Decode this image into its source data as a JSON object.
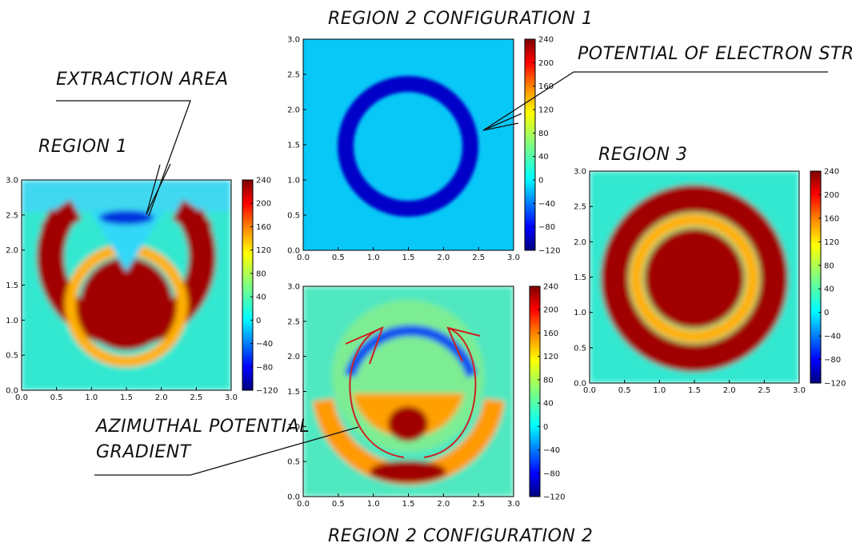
{
  "annotations": {
    "region1": "REGION 1",
    "region2_config1": "REGION 2 CONFIGURATION 1",
    "region2_config2": "REGION 2 CONFIGURATION 2",
    "region3": "REGION 3",
    "extraction_area": "EXTRACTION AREA",
    "potential_string": "POTENTIAL OF ELECTRON STRING",
    "azimuthal_line1": "AZIMUTHAL POTENTIAL",
    "azimuthal_line2": "GRADIENT"
  },
  "colors": {
    "jet": [
      "#00007f",
      "#0000ff",
      "#007fff",
      "#00ffff",
      "#7fff7f",
      "#ffff00",
      "#ff7f00",
      "#ff0000",
      "#7f0000"
    ],
    "arrow": "#cc2222"
  },
  "chart_data": [
    {
      "type": "heatmap",
      "title": "REGION 1",
      "xlim": [
        0,
        3
      ],
      "ylim": [
        0,
        3
      ],
      "xticks": [
        "0.0",
        "0.5",
        "1.0",
        "1.5",
        "2.0",
        "2.5",
        "3.0"
      ],
      "yticks": [
        "0.0",
        "0.5",
        "1.0",
        "1.5",
        "2.0",
        "2.5",
        "3.0"
      ],
      "colorbar": {
        "range": [
          -120,
          240
        ],
        "ticks": [
          "240",
          "200",
          "160",
          "120",
          "80",
          "40",
          "0",
          "−40",
          "−80",
          "−120"
        ]
      },
      "background": 40,
      "features": [
        {
          "kind": "ring",
          "cx": 1.5,
          "cy": 1.2,
          "r": 1.1,
          "width": 0.4,
          "value": 240,
          "gap_deg": [
            60,
            120
          ]
        },
        {
          "kind": "ring",
          "cx": 1.5,
          "cy": 1.2,
          "r": 0.75,
          "width": 0.14,
          "value": 160,
          "gap_deg": [
            58,
            122
          ]
        },
        {
          "kind": "disk",
          "cx": 1.5,
          "cy": 1.2,
          "r": 0.62,
          "value": 240
        },
        {
          "kind": "wedge",
          "x": [
            1.0,
            2.0,
            1.5
          ],
          "y": [
            2.55,
            2.55,
            1.7
          ],
          "value": 20
        },
        {
          "kind": "blob",
          "cx": 1.5,
          "cy": 2.45,
          "rx": 0.35,
          "ry": 0.1,
          "value": -60
        }
      ]
    },
    {
      "type": "heatmap",
      "title": "REGION 2 CONFIGURATION 1",
      "xlim": [
        0,
        3
      ],
      "ylim": [
        0,
        3
      ],
      "xticks": [
        "0.0",
        "0.5",
        "1.0",
        "1.5",
        "2.0",
        "2.5",
        "3.0"
      ],
      "yticks": [
        "0.0",
        "0.5",
        "1.0",
        "1.5",
        "2.0",
        "2.5",
        "3.0"
      ],
      "colorbar": {
        "range": [
          -120,
          240
        ],
        "ticks": [
          "240",
          "200",
          "160",
          "120",
          "80",
          "40",
          "0",
          "−40",
          "−80",
          "−120"
        ]
      },
      "background": 0,
      "features": [
        {
          "kind": "ring",
          "cx": 1.5,
          "cy": 1.6,
          "r": 0.82,
          "width": 0.16,
          "value": -110
        }
      ]
    },
    {
      "type": "heatmap",
      "title": "REGION 2 CONFIGURATION 2",
      "xlim": [
        0,
        3
      ],
      "ylim": [
        0,
        3
      ],
      "xticks": [
        "0.0",
        "0.5",
        "1.0",
        "1.5",
        "2.0",
        "2.5",
        "3.0"
      ],
      "yticks": [
        "0.0",
        "0.5",
        "1.0",
        "1.5",
        "2.0",
        "2.5",
        "3.0"
      ],
      "colorbar": {
        "range": [
          -120,
          240
        ],
        "ticks": [
          "240",
          "200",
          "160",
          "120",
          "80",
          "40",
          "0",
          "−40",
          "−80",
          "−120"
        ]
      },
      "background": 40,
      "features": [
        {
          "kind": "arc",
          "cx": 1.5,
          "cy": 1.55,
          "r": 0.92,
          "width": 0.14,
          "value": -60,
          "from_deg": 20,
          "to_deg": 160
        },
        {
          "kind": "arc",
          "cx": 1.5,
          "cy": 1.1,
          "r": 1.2,
          "width": 0.25,
          "value": 140,
          "from_deg": 190,
          "to_deg": 350
        },
        {
          "kind": "half",
          "cx": 1.5,
          "cy": 1.45,
          "r": 0.8,
          "value": 140
        },
        {
          "kind": "blob",
          "cx": 1.5,
          "cy": 1.05,
          "rx": 0.25,
          "ry": 0.25,
          "value": 240
        },
        {
          "kind": "blob",
          "cx": 1.5,
          "cy": 0.35,
          "rx": 0.5,
          "ry": 0.15,
          "value": 240
        }
      ]
    },
    {
      "type": "heatmap",
      "title": "REGION 3",
      "xlim": [
        0,
        3
      ],
      "ylim": [
        0,
        3
      ],
      "xticks": [
        "0.0",
        "0.5",
        "1.0",
        "1.5",
        "2.0",
        "2.5",
        "3.0"
      ],
      "yticks": [
        "0.0",
        "0.5",
        "1.0",
        "1.5",
        "2.0",
        "2.5",
        "3.0"
      ],
      "colorbar": {
        "range": [
          -120,
          240
        ],
        "ticks": [
          "240",
          "200",
          "160",
          "120",
          "80",
          "40",
          "0",
          "−40",
          "−80",
          "−120"
        ]
      },
      "background": 40,
      "features": [
        {
          "kind": "ring",
          "cx": 1.5,
          "cy": 1.5,
          "r": 1.1,
          "width": 0.36,
          "value": 240
        },
        {
          "kind": "ring",
          "cx": 1.5,
          "cy": 1.5,
          "r": 0.78,
          "width": 0.14,
          "value": 160
        },
        {
          "kind": "disk",
          "cx": 1.5,
          "cy": 1.5,
          "r": 0.64,
          "value": 240
        }
      ]
    }
  ]
}
